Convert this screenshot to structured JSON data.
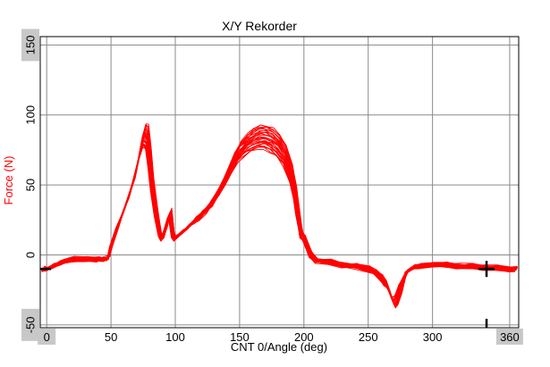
{
  "chart_data": {
    "type": "line",
    "title": "X/Y Rekorder",
    "xlabel": "CNT 0/Angle (deg)",
    "ylabel": "Force (N)",
    "xlim": [
      -5,
      367
    ],
    "ylim": [
      -52,
      156
    ],
    "x_ticks": [
      0,
      50,
      100,
      150,
      200,
      250,
      300,
      360
    ],
    "x_tick_labels": [
      "0",
      "50",
      "100",
      "150",
      "200",
      "250",
      "300",
      "360"
    ],
    "y_ticks": [
      -50,
      0,
      50,
      100,
      150
    ],
    "y_tick_labels": [
      "-50",
      "0",
      "50",
      "100",
      "150"
    ],
    "grid": true,
    "series_color": "#ff0000",
    "cursor": {
      "x": 342,
      "y": -10,
      "color": "#000000"
    },
    "trace_count": 30,
    "series": [
      {
        "x": [
          -3,
          0,
          5,
          10,
          20,
          30,
          40,
          45,
          48,
          50,
          55,
          60,
          65,
          70,
          73,
          76,
          78,
          80,
          82,
          85,
          88,
          90,
          93,
          95,
          96,
          97,
          98,
          100,
          105,
          110,
          115,
          120,
          125,
          130,
          135,
          140,
          145,
          150,
          155,
          160,
          165,
          170,
          175,
          180,
          185,
          190,
          193,
          195,
          197,
          198,
          200,
          205,
          210,
          220,
          230,
          240,
          250,
          255,
          260,
          263,
          266,
          268,
          270,
          272,
          275,
          278,
          280,
          285,
          290,
          300,
          310,
          320,
          330,
          340,
          350,
          360,
          365
        ],
        "y": [
          -10,
          -10,
          -8,
          -6,
          -3,
          -3,
          -3,
          -3,
          -2,
          6,
          20,
          32,
          45,
          62,
          76,
          86,
          84,
          70,
          50,
          30,
          15,
          12,
          20,
          28,
          30,
          22,
          14,
          12,
          16,
          20,
          24,
          28,
          33,
          39,
          47,
          56,
          66,
          74,
          79,
          82,
          84,
          84,
          82,
          78,
          71,
          58,
          45,
          32,
          20,
          14,
          12,
          0,
          -4,
          -5,
          -7,
          -8,
          -10,
          -12,
          -16,
          -20,
          -25,
          -30,
          -34,
          -32,
          -24,
          -16,
          -12,
          -9,
          -8,
          -7,
          -7,
          -8,
          -8,
          -9,
          -9,
          -10,
          -10
        ]
      }
    ]
  }
}
